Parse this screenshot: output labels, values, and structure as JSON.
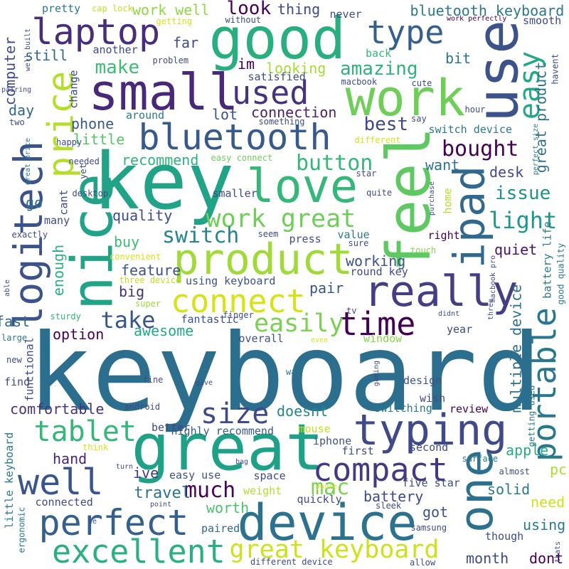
{
  "words": [
    {
      "text": "keyboard",
      "color": "#2c6e8e"
    },
    {
      "text": "great",
      "color": "#1fa187"
    },
    {
      "text": "key",
      "color": "#20a386"
    },
    {
      "text": "good",
      "color": "#29af7f"
    },
    {
      "text": "use",
      "color": "#3b528b"
    },
    {
      "text": "work",
      "color": "#6ece58"
    },
    {
      "text": "device",
      "color": "#2c728e"
    },
    {
      "text": "feel",
      "color": "#5ec962"
    },
    {
      "text": "nice",
      "color": "#20a386"
    },
    {
      "text": "ipad",
      "color": "#31688e"
    },
    {
      "text": "logitech",
      "color": "#3b528b"
    },
    {
      "text": "small",
      "color": "#482878"
    },
    {
      "text": "typing",
      "color": "#3e4a89"
    },
    {
      "text": "product",
      "color": "#a0da39"
    },
    {
      "text": "really",
      "color": "#433e85"
    },
    {
      "text": "portable",
      "color": "#2a768e"
    },
    {
      "text": "one",
      "color": "#2d708e"
    },
    {
      "text": "love",
      "color": "#35b779"
    },
    {
      "text": "bluetooth",
      "color": "#38598c"
    },
    {
      "text": "laptop",
      "color": "#472d7b"
    },
    {
      "text": "type",
      "color": "#355f8d"
    },
    {
      "text": "price",
      "color": "#b5de2b"
    },
    {
      "text": "easy",
      "color": "#22a884"
    },
    {
      "text": "perfect",
      "color": "#355f8d"
    },
    {
      "text": "compact",
      "color": "#443983"
    },
    {
      "text": "excellent",
      "color": "#2ab07f"
    },
    {
      "text": "well",
      "color": "#39568c"
    },
    {
      "text": "connect",
      "color": "#d8e219"
    },
    {
      "text": "time",
      "color": "#440154"
    },
    {
      "text": "tablet",
      "color": "#35b779"
    },
    {
      "text": "used",
      "color": "#46327e"
    },
    {
      "text": "size",
      "color": "#3e4a89"
    },
    {
      "text": "great keyboard",
      "color": "#cde11d"
    },
    {
      "text": "work great",
      "color": "#6ece58"
    },
    {
      "text": "easily",
      "color": "#7ad151"
    },
    {
      "text": "mac",
      "color": "#7ad151"
    },
    {
      "text": "switch",
      "color": "#25848e"
    },
    {
      "text": "much",
      "color": "#450457"
    },
    {
      "text": "take",
      "color": "#39568c"
    },
    {
      "text": "light",
      "color": "#1f988b"
    },
    {
      "text": "bought",
      "color": "#440154"
    },
    {
      "text": "button",
      "color": "#35b779"
    },
    {
      "text": "best",
      "color": "#3f4889"
    },
    {
      "text": "amazing",
      "color": "#2eb37c"
    },
    {
      "text": "make",
      "color": "#3dbc74"
    },
    {
      "text": "issue",
      "color": "#21918c"
    },
    {
      "text": "multiple device",
      "color": "#2d708e"
    },
    {
      "text": "bluetooth keyboard",
      "color": "#2a788e"
    },
    {
      "text": "great product",
      "color": "#2c728e"
    },
    {
      "text": "look",
      "color": "#440154"
    },
    {
      "text": "work well",
      "color": "#8fd744"
    },
    {
      "text": "quality",
      "color": "#3e4a89"
    },
    {
      "text": "hand",
      "color": "#482475"
    },
    {
      "text": "travel",
      "color": "#2c728e"
    },
    {
      "text": "worth",
      "color": "#4ac16d"
    },
    {
      "text": "battery",
      "color": "#3e4a89"
    },
    {
      "text": "using",
      "color": "#287c8e"
    },
    {
      "text": "solid",
      "color": "#2a788e"
    },
    {
      "text": "apple",
      "color": "#26ad81"
    },
    {
      "text": "pc",
      "color": "#aadc32"
    },
    {
      "text": "need",
      "color": "#cde11d"
    },
    {
      "text": "ive",
      "color": "#443983"
    },
    {
      "text": "got",
      "color": "#3b528b"
    },
    {
      "text": "dont",
      "color": "#440154"
    },
    {
      "text": "month",
      "color": "#3e4a89"
    },
    {
      "text": "feature",
      "color": "#3b528b"
    },
    {
      "text": "awesome",
      "color": "#22a884"
    },
    {
      "text": "fast",
      "color": "#31688e"
    },
    {
      "text": "comfortable",
      "color": "#46327e"
    },
    {
      "text": "doesnt",
      "color": "#25848e"
    },
    {
      "text": "mouse",
      "color": "#c2df23"
    },
    {
      "text": "pair",
      "color": "#39568c"
    },
    {
      "text": "working",
      "color": "#3b528b"
    },
    {
      "text": "quiet",
      "color": "#471365"
    },
    {
      "text": "buy",
      "color": "#3dbc74"
    },
    {
      "text": "enough",
      "color": "#2ab07f"
    },
    {
      "text": "big",
      "color": "#46327e"
    },
    {
      "text": "phone",
      "color": "#38598c"
    },
    {
      "text": "little",
      "color": "#54c568"
    },
    {
      "text": "connection",
      "color": "#481f70"
    },
    {
      "text": "recommend",
      "color": "#2eb37c"
    },
    {
      "text": "lot",
      "color": "#3b528b"
    },
    {
      "text": "im",
      "color": "#440154"
    },
    {
      "text": "looking",
      "color": "#a8db34"
    },
    {
      "text": "thing",
      "color": "#3e4a89"
    },
    {
      "text": "far",
      "color": "#3e4a89"
    },
    {
      "text": "still",
      "color": "#31688e"
    },
    {
      "text": "computer",
      "color": "#3e4a89"
    },
    {
      "text": "day",
      "color": "#31688e"
    },
    {
      "text": "go",
      "color": "#2c728e"
    },
    {
      "text": "want",
      "color": "#2c728e"
    },
    {
      "text": "desk",
      "color": "#3e4a89"
    },
    {
      "text": "bit",
      "color": "#2c728e"
    },
    {
      "text": "back",
      "color": "#37b878"
    },
    {
      "text": "option",
      "color": "#440154"
    },
    {
      "text": "fantastic",
      "color": "#3b528b"
    },
    {
      "text": "overall",
      "color": "#3b528b"
    },
    {
      "text": "window",
      "color": "#86d549"
    },
    {
      "text": "year",
      "color": "#3e4a89"
    },
    {
      "text": "design",
      "color": "#3b528b"
    },
    {
      "text": "wish",
      "color": "#3e4a89"
    },
    {
      "text": "review",
      "color": "#440154"
    },
    {
      "text": "switching",
      "color": "#2a788e"
    },
    {
      "text": "iphone",
      "color": "#3b528b"
    },
    {
      "text": "first",
      "color": "#3e4a89"
    },
    {
      "text": "second",
      "color": "#3e4a89"
    },
    {
      "text": "space",
      "color": "#3e4a89"
    },
    {
      "text": "five star",
      "color": "#3e4a89"
    },
    {
      "text": "quickly",
      "color": "#3e4a89"
    },
    {
      "text": "weight",
      "color": "#b5de2b"
    },
    {
      "text": "paired",
      "color": "#31688e"
    },
    {
      "text": "easy use",
      "color": "#3b528b"
    },
    {
      "text": "highly recommend",
      "color": "#38598c"
    },
    {
      "text": "better",
      "color": "#3e4a89"
    },
    {
      "text": "using keyboard",
      "color": "#3b528b"
    },
    {
      "text": "round key",
      "color": "#3e4a89"
    },
    {
      "text": "value",
      "color": "#2a788e"
    },
    {
      "text": "press",
      "color": "#3e4a89"
    },
    {
      "text": "right",
      "color": "#440154"
    },
    {
      "text": "sure",
      "color": "#3e4a89"
    },
    {
      "text": "seem",
      "color": "#3e4a89"
    },
    {
      "text": "touch",
      "color": "#86d549"
    },
    {
      "text": "three device",
      "color": "#c2df23"
    },
    {
      "text": "convenient",
      "color": "#d8e219"
    },
    {
      "text": "exactly",
      "color": "#3e4a89"
    },
    {
      "text": "many",
      "color": "#3e4a89"
    },
    {
      "text": "cant",
      "color": "#3e4a89"
    },
    {
      "text": "home",
      "color": "#b5de2b"
    },
    {
      "text": "quite",
      "color": "#3e4a89"
    },
    {
      "text": "smaller",
      "color": "#3e4a89"
    },
    {
      "text": "star",
      "color": "#3e4a89"
    },
    {
      "text": "easy connect",
      "color": "#6ece58"
    },
    {
      "text": "different",
      "color": "#d8e219"
    },
    {
      "text": "yet",
      "color": "#3e4a89"
    },
    {
      "text": "needed",
      "color": "#3e4a89"
    },
    {
      "text": "happy",
      "color": "#3e4a89"
    },
    {
      "text": "two",
      "color": "#3e4a89"
    },
    {
      "text": "something",
      "color": "#3e4a89"
    },
    {
      "text": "around",
      "color": "#2a788e"
    },
    {
      "text": "satisfied",
      "color": "#3e4a89"
    },
    {
      "text": "macbook",
      "color": "#3e4a89"
    },
    {
      "text": "problem",
      "color": "#3e4a89"
    },
    {
      "text": "another",
      "color": "#3e4a89"
    },
    {
      "text": "change",
      "color": "#3e4a89"
    },
    {
      "text": "say",
      "color": "#3e4a89"
    },
    {
      "text": "hour",
      "color": "#3e4a89"
    },
    {
      "text": "cute",
      "color": "#3e4a89"
    },
    {
      "text": "never",
      "color": "#3e4a89"
    },
    {
      "text": "cap lock",
      "color": "#c2df23"
    },
    {
      "text": "pretty",
      "color": "#2a788e"
    },
    {
      "text": "getting",
      "color": "#d8e219"
    },
    {
      "text": "without",
      "color": "#3e4a89"
    },
    {
      "text": "work perfectly",
      "color": "#440154"
    },
    {
      "text": "smooth",
      "color": "#3e4a89"
    },
    {
      "text": "havent",
      "color": "#3e4a89"
    },
    {
      "text": "switch device",
      "color": "#2a788e"
    },
    {
      "text": "perfect size",
      "color": "#2a788e"
    },
    {
      "text": "well built",
      "color": "#3e4a89"
    },
    {
      "text": "pairing",
      "color": "#3e4a89"
    },
    {
      "text": "great price",
      "color": "#2a788e"
    },
    {
      "text": "desktop",
      "color": "#3e4a89"
    },
    {
      "text": "purchase",
      "color": "#3e4a89"
    },
    {
      "text": "macbook pro",
      "color": "#3e4a89"
    },
    {
      "text": "able",
      "color": "#3e4a89"
    },
    {
      "text": "sturdy",
      "color": "#2eb37c"
    },
    {
      "text": "large",
      "color": "#2a788e"
    },
    {
      "text": "super",
      "color": "#a0da39"
    },
    {
      "text": "finger",
      "color": "#3e4a89"
    },
    {
      "text": "tv",
      "color": "#3e4a89"
    },
    {
      "text": "didnt",
      "color": "#3e4a89"
    },
    {
      "text": "three",
      "color": "#3e4a89"
    },
    {
      "text": "battery life",
      "color": "#2a788e"
    },
    {
      "text": "good quality",
      "color": "#2a788e"
    },
    {
      "text": "even",
      "color": "#d8e219"
    },
    {
      "text": "new",
      "color": "#3e4a89"
    },
    {
      "text": "functional",
      "color": "#3e4a89"
    },
    {
      "text": "find",
      "color": "#3e4a89"
    },
    {
      "text": "fine",
      "color": "#3e4a89"
    },
    {
      "text": "give",
      "color": "#3e4a89"
    },
    {
      "text": "way",
      "color": "#2a788e"
    },
    {
      "text": "gaming",
      "color": "#3e4a89"
    },
    {
      "text": "android",
      "color": "#3e4a89"
    },
    {
      "text": "getting used",
      "color": "#2a788e"
    },
    {
      "text": "little keyboard",
      "color": "#2a788e"
    },
    {
      "text": "ergonomic",
      "color": "#2a788e"
    },
    {
      "text": "think",
      "color": "#d8e219"
    },
    {
      "text": "turn",
      "color": "#3e4a89"
    },
    {
      "text": "bag",
      "color": "#3e4a89"
    },
    {
      "text": "youre",
      "color": "#d8e219"
    },
    {
      "text": "surface",
      "color": "#2a788e"
    },
    {
      "text": "almost",
      "color": "#3e4a89"
    },
    {
      "text": "point",
      "color": "#3e4a89"
    },
    {
      "text": "sleek",
      "color": "#3e4a89"
    },
    {
      "text": "connected",
      "color": "#3e4a89"
    },
    {
      "text": "le",
      "color": "#3e4a89"
    },
    {
      "text": "samsung",
      "color": "#3e4a89"
    },
    {
      "text": "allow",
      "color": "#3e4a89"
    },
    {
      "text": "though",
      "color": "#3e4a89"
    },
    {
      "text": "different device",
      "color": "#3e4a89"
    },
    {
      "text": "thats",
      "color": "#3e4a89"
    }
  ]
}
